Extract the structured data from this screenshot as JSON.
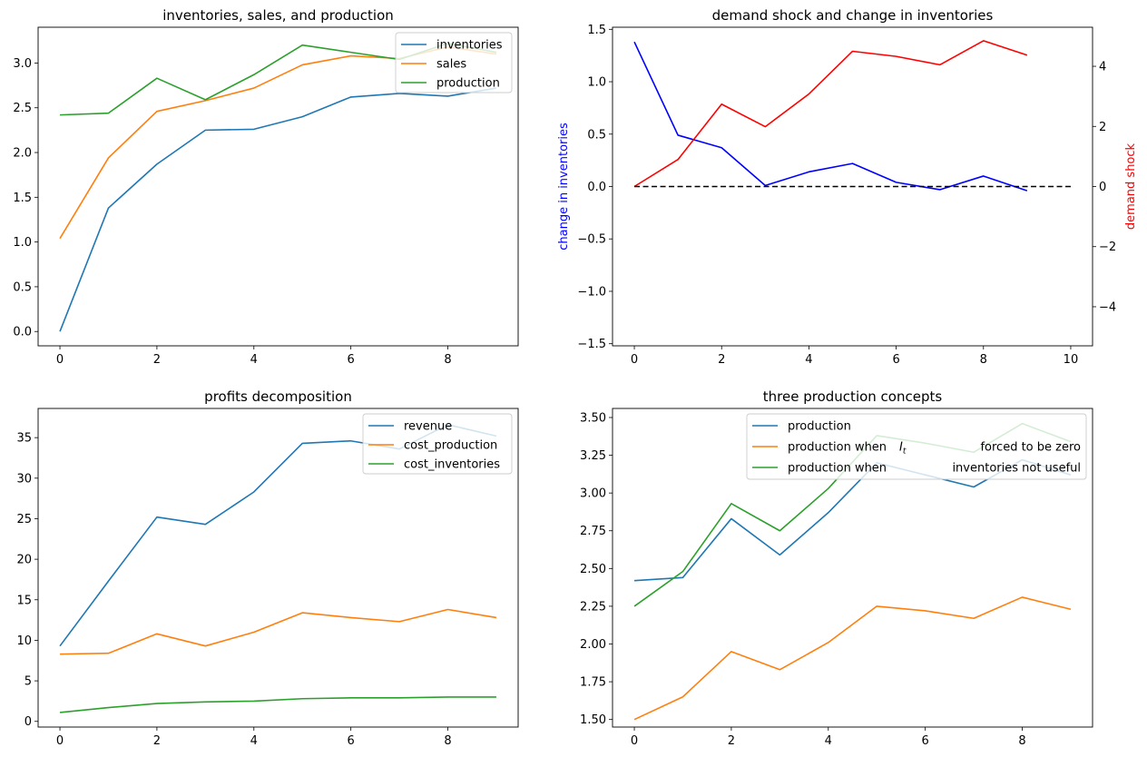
{
  "colors": {
    "blue": "#1f77b4",
    "orange": "#ff7f0e",
    "green": "#2ca02c",
    "pure_blue": "#0000ff",
    "red": "#ff0000",
    "black": "#000000"
  },
  "chart_data": [
    {
      "id": "inventories-sales-production",
      "type": "line",
      "title": "inventories, sales, and production",
      "xlabel": "",
      "ylabel": "",
      "xlim": [
        -0.45,
        9.45
      ],
      "ylim": [
        -0.16,
        3.4
      ],
      "xticks": [
        0,
        2,
        4,
        6,
        8
      ],
      "xtick_labels": [
        "0",
        "2",
        "4",
        "6",
        "8"
      ],
      "yticks": [
        0.0,
        0.5,
        1.0,
        1.5,
        2.0,
        2.5,
        3.0
      ],
      "ytick_labels": [
        "0.0",
        "0.5",
        "1.0",
        "1.5",
        "2.0",
        "2.5",
        "3.0"
      ],
      "legend": "upper right",
      "x": [
        0,
        1,
        2,
        3,
        4,
        5,
        6,
        7,
        8,
        9
      ],
      "series": [
        {
          "name": "inventories",
          "color": "#1f77b4",
          "values": [
            0.0,
            1.38,
            1.87,
            2.25,
            2.26,
            2.4,
            2.62,
            2.66,
            2.63,
            2.72
          ]
        },
        {
          "name": "sales",
          "color": "#ff7f0e",
          "values": [
            1.04,
            1.94,
            2.46,
            2.58,
            2.72,
            2.98,
            3.08,
            3.05,
            3.18,
            3.1
          ]
        },
        {
          "name": "production",
          "color": "#2ca02c",
          "values": [
            2.42,
            2.44,
            2.83,
            2.59,
            2.87,
            3.2,
            3.12,
            3.04,
            3.22,
            3.12
          ]
        }
      ]
    },
    {
      "id": "demand-shock-change-inventories",
      "type": "line",
      "title": "demand shock and change in inventories",
      "xlabel": "",
      "ylabel": "change in inventories",
      "ylabel_color": "#0000ff",
      "y2label": "demand shock",
      "y2label_color": "#ff0000",
      "xlim": [
        -0.5,
        10.5
      ],
      "ylim": [
        -1.52,
        1.52
      ],
      "y2lim": [
        -5.3,
        5.3
      ],
      "xticks": [
        0,
        2,
        4,
        6,
        8,
        10
      ],
      "xtick_labels": [
        "0",
        "2",
        "4",
        "6",
        "8",
        "10"
      ],
      "yticks": [
        -1.5,
        -1.0,
        -0.5,
        0.0,
        0.5,
        1.0,
        1.5
      ],
      "ytick_labels": [
        "−1.5",
        "−1.0",
        "−0.5",
        "0.0",
        "0.5",
        "1.0",
        "1.5"
      ],
      "y2ticks": [
        -4,
        -2,
        0,
        2,
        4
      ],
      "y2tick_labels": [
        "−4",
        "−2",
        "0",
        "2",
        "4"
      ],
      "series": [
        {
          "name": "change in inventories",
          "color": "#0000ff",
          "axis": "left",
          "x": [
            0,
            1,
            2,
            3,
            4,
            5,
            6,
            7,
            8,
            9
          ],
          "values": [
            1.38,
            0.49,
            0.37,
            0.01,
            0.14,
            0.22,
            0.04,
            -0.03,
            0.1,
            -0.04
          ]
        },
        {
          "name": "demand shock",
          "color": "#ff0000",
          "axis": "right",
          "x": [
            0,
            1,
            2,
            3,
            4,
            5,
            6,
            7,
            8,
            9
          ],
          "values": [
            0.0,
            0.9,
            2.74,
            1.99,
            3.08,
            4.5,
            4.33,
            4.05,
            4.85,
            4.37
          ]
        },
        {
          "name": "zero line",
          "color": "#000000",
          "axis": "left",
          "dashed": true,
          "x": [
            0,
            10
          ],
          "values": [
            0,
            0
          ]
        }
      ]
    },
    {
      "id": "profits-decomposition",
      "type": "line",
      "title": "profits decomposition",
      "xlabel": "",
      "ylabel": "",
      "xlim": [
        -0.45,
        9.45
      ],
      "ylim": [
        -0.7,
        38.6
      ],
      "xticks": [
        0,
        2,
        4,
        6,
        8
      ],
      "xtick_labels": [
        "0",
        "2",
        "4",
        "6",
        "8"
      ],
      "yticks": [
        0,
        5,
        10,
        15,
        20,
        25,
        30,
        35
      ],
      "ytick_labels": [
        "0",
        "5",
        "10",
        "15",
        "20",
        "25",
        "30",
        "35"
      ],
      "legend": "upper right",
      "x": [
        0,
        1,
        2,
        3,
        4,
        5,
        6,
        7,
        8,
        9
      ],
      "series": [
        {
          "name": "revenue",
          "color": "#1f77b4",
          "values": [
            9.3,
            17.3,
            25.2,
            24.3,
            28.3,
            34.3,
            34.6,
            33.6,
            36.6,
            35.2
          ]
        },
        {
          "name": "cost_production",
          "color": "#ff7f0e",
          "values": [
            8.3,
            8.4,
            10.8,
            9.3,
            11.0,
            13.4,
            12.8,
            12.3,
            13.8,
            12.8
          ]
        },
        {
          "name": "cost_inventories",
          "color": "#2ca02c",
          "values": [
            1.1,
            1.7,
            2.2,
            2.4,
            2.5,
            2.8,
            2.9,
            2.9,
            3.0,
            3.0
          ]
        }
      ]
    },
    {
      "id": "three-production-concepts",
      "type": "line",
      "title": "three production concepts",
      "xlabel": "",
      "ylabel": "",
      "xlim": [
        -0.45,
        9.45
      ],
      "ylim": [
        1.45,
        3.56
      ],
      "xticks": [
        0,
        2,
        4,
        6,
        8
      ],
      "xtick_labels": [
        "0",
        "2",
        "4",
        "6",
        "8"
      ],
      "yticks": [
        1.5,
        1.75,
        2.0,
        2.25,
        2.5,
        2.75,
        3.0,
        3.25,
        3.5
      ],
      "ytick_labels": [
        "1.50",
        "1.75",
        "2.00",
        "2.25",
        "2.50",
        "2.75",
        "3.00",
        "3.25",
        "3.50"
      ],
      "legend": "upper right",
      "x": [
        0,
        1,
        2,
        3,
        4,
        5,
        6,
        7,
        8,
        9
      ],
      "series": [
        {
          "name": "production",
          "color": "#1f77b4",
          "values": [
            2.42,
            2.44,
            2.83,
            2.59,
            2.87,
            3.2,
            3.12,
            3.04,
            3.22,
            3.12
          ]
        },
        {
          "name": "production when",
          "math": "I",
          "math_sub": "t",
          "name_tail": "forced to be zero",
          "color": "#ff7f0e",
          "values": [
            1.5,
            1.65,
            1.95,
            1.83,
            2.01,
            2.25,
            2.22,
            2.17,
            2.31,
            2.23
          ]
        },
        {
          "name": "production when",
          "name_tail": "inventories not useful",
          "color": "#2ca02c",
          "values": [
            2.25,
            2.48,
            2.93,
            2.75,
            3.03,
            3.38,
            3.33,
            3.27,
            3.46,
            3.34
          ]
        }
      ]
    }
  ]
}
